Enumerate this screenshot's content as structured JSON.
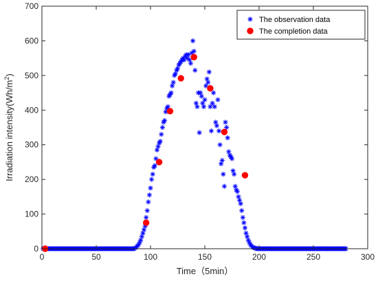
{
  "chart_data": {
    "type": "scatter",
    "xlabel": "Time（5min）",
    "ylabel_main": "Irradiation intensity(Wh/m",
    "ylabel_sup": "2",
    "ylabel_close": ")",
    "xlim": [
      0,
      300
    ],
    "ylim": [
      0,
      700
    ],
    "x_ticks": [
      0,
      50,
      100,
      150,
      200,
      250,
      300
    ],
    "y_ticks": [
      0,
      100,
      200,
      300,
      400,
      500,
      600,
      700
    ],
    "grid": false,
    "legend_position": "top-right",
    "series": [
      {
        "name": "The observation data",
        "marker": "asterisk",
        "color": "#0000ff",
        "points": [
          [
            1,
            0
          ],
          [
            2,
            0
          ],
          [
            3,
            0
          ],
          [
            4,
            0
          ],
          [
            5,
            0
          ],
          [
            6,
            0
          ],
          [
            7,
            0
          ],
          [
            8,
            0
          ],
          [
            9,
            0
          ],
          [
            10,
            0
          ],
          [
            11,
            0
          ],
          [
            12,
            0
          ],
          [
            13,
            0
          ],
          [
            14,
            0
          ],
          [
            15,
            0
          ],
          [
            16,
            0
          ],
          [
            17,
            0
          ],
          [
            18,
            0
          ],
          [
            19,
            0
          ],
          [
            20,
            0
          ],
          [
            21,
            0
          ],
          [
            22,
            0
          ],
          [
            23,
            0
          ],
          [
            24,
            0
          ],
          [
            25,
            0
          ],
          [
            26,
            0
          ],
          [
            27,
            0
          ],
          [
            28,
            0
          ],
          [
            29,
            0
          ],
          [
            30,
            0
          ],
          [
            31,
            0
          ],
          [
            32,
            0
          ],
          [
            33,
            0
          ],
          [
            34,
            0
          ],
          [
            35,
            0
          ],
          [
            36,
            0
          ],
          [
            37,
            0
          ],
          [
            38,
            0
          ],
          [
            39,
            0
          ],
          [
            40,
            0
          ],
          [
            41,
            0
          ],
          [
            42,
            0
          ],
          [
            43,
            0
          ],
          [
            44,
            0
          ],
          [
            45,
            0
          ],
          [
            46,
            0
          ],
          [
            47,
            0
          ],
          [
            48,
            0
          ],
          [
            49,
            0
          ],
          [
            50,
            0
          ],
          [
            51,
            0
          ],
          [
            52,
            0
          ],
          [
            53,
            0
          ],
          [
            54,
            0
          ],
          [
            55,
            0
          ],
          [
            56,
            0
          ],
          [
            57,
            0
          ],
          [
            58,
            0
          ],
          [
            59,
            0
          ],
          [
            60,
            0
          ],
          [
            61,
            0
          ],
          [
            62,
            0
          ],
          [
            63,
            0
          ],
          [
            64,
            0
          ],
          [
            65,
            0
          ],
          [
            66,
            0
          ],
          [
            67,
            0
          ],
          [
            68,
            0
          ],
          [
            69,
            0
          ],
          [
            70,
            0
          ],
          [
            71,
            0
          ],
          [
            72,
            0
          ],
          [
            73,
            0
          ],
          [
            74,
            0
          ],
          [
            75,
            0
          ],
          [
            76,
            0
          ],
          [
            77,
            0
          ],
          [
            78,
            0
          ],
          [
            79,
            0
          ],
          [
            80,
            0
          ],
          [
            81,
            0
          ],
          [
            82,
            0
          ],
          [
            83,
            0
          ],
          [
            84,
            0
          ],
          [
            85,
            0
          ],
          [
            86,
            2
          ],
          [
            87,
            5
          ],
          [
            88,
            8
          ],
          [
            89,
            12
          ],
          [
            90,
            18
          ],
          [
            91,
            25
          ],
          [
            92,
            35
          ],
          [
            93,
            45
          ],
          [
            94,
            55
          ],
          [
            95,
            65
          ],
          [
            96,
            90
          ],
          [
            97,
            110
          ],
          [
            98,
            135
          ],
          [
            99,
            155
          ],
          [
            100,
            175
          ],
          [
            101,
            200
          ],
          [
            102,
            215
          ],
          [
            103,
            235
          ],
          [
            104,
            240
          ],
          [
            105,
            260
          ],
          [
            106,
            285
          ],
          [
            107,
            295
          ],
          [
            108,
            305
          ],
          [
            109,
            310
          ],
          [
            110,
            330
          ],
          [
            111,
            350
          ],
          [
            112,
            365
          ],
          [
            113,
            370
          ],
          [
            114,
            395
          ],
          [
            115,
            405
          ],
          [
            116,
            410
          ],
          [
            117,
            440
          ],
          [
            118,
            445
          ],
          [
            119,
            450
          ],
          [
            120,
            470
          ],
          [
            121,
            480
          ],
          [
            122,
            500
          ],
          [
            123,
            505
          ],
          [
            124,
            515
          ],
          [
            125,
            520
          ],
          [
            126,
            530
          ],
          [
            127,
            535
          ],
          [
            128,
            540
          ],
          [
            129,
            545
          ],
          [
            130,
            550
          ],
          [
            131,
            545
          ],
          [
            132,
            555
          ],
          [
            133,
            560
          ],
          [
            134,
            550
          ],
          [
            135,
            560
          ],
          [
            136,
            545
          ],
          [
            137,
            535
          ],
          [
            138,
            565
          ],
          [
            139,
            600
          ],
          [
            140,
            570
          ],
          [
            141,
            515
          ],
          [
            142,
            420
          ],
          [
            143,
            410
          ],
          [
            144,
            450
          ],
          [
            145,
            335
          ],
          [
            146,
            450
          ],
          [
            147,
            440
          ],
          [
            148,
            420
          ],
          [
            149,
            410
          ],
          [
            150,
            430
          ],
          [
            151,
            470
          ],
          [
            152,
            490
          ],
          [
            153,
            480
          ],
          [
            154,
            510
          ],
          [
            155,
            410
          ],
          [
            156,
            340
          ],
          [
            157,
            420
          ],
          [
            158,
            450
          ],
          [
            159,
            410
          ],
          [
            160,
            365
          ],
          [
            161,
            355
          ],
          [
            162,
            430
          ],
          [
            163,
            340
          ],
          [
            164,
            300
          ],
          [
            165,
            245
          ],
          [
            166,
            255
          ],
          [
            167,
            215
          ],
          [
            168,
            180
          ],
          [
            169,
            365
          ],
          [
            170,
            350
          ],
          [
            171,
            320
          ],
          [
            172,
            280
          ],
          [
            173,
            270
          ],
          [
            174,
            265
          ],
          [
            175,
            260
          ],
          [
            176,
            225
          ],
          [
            177,
            215
          ],
          [
            178,
            180
          ],
          [
            179,
            170
          ],
          [
            180,
            165
          ],
          [
            181,
            150
          ],
          [
            182,
            140
          ],
          [
            183,
            130
          ],
          [
            184,
            110
          ],
          [
            185,
            90
          ],
          [
            186,
            75
          ],
          [
            187,
            60
          ],
          [
            188,
            45
          ],
          [
            189,
            35
          ],
          [
            190,
            25
          ],
          [
            191,
            18
          ],
          [
            192,
            12
          ],
          [
            193,
            8
          ],
          [
            194,
            5
          ],
          [
            195,
            3
          ],
          [
            196,
            2
          ],
          [
            197,
            1
          ],
          [
            198,
            0
          ],
          [
            199,
            0
          ],
          [
            200,
            0
          ],
          [
            201,
            0
          ],
          [
            202,
            0
          ],
          [
            203,
            0
          ],
          [
            204,
            0
          ],
          [
            205,
            0
          ],
          [
            206,
            0
          ],
          [
            207,
            0
          ],
          [
            208,
            0
          ],
          [
            209,
            0
          ],
          [
            210,
            0
          ],
          [
            211,
            0
          ],
          [
            212,
            0
          ],
          [
            213,
            0
          ],
          [
            214,
            0
          ],
          [
            215,
            0
          ],
          [
            216,
            0
          ],
          [
            217,
            0
          ],
          [
            218,
            0
          ],
          [
            219,
            0
          ],
          [
            220,
            0
          ],
          [
            221,
            0
          ],
          [
            222,
            0
          ],
          [
            223,
            0
          ],
          [
            224,
            0
          ],
          [
            225,
            0
          ],
          [
            226,
            0
          ],
          [
            227,
            0
          ],
          [
            228,
            0
          ],
          [
            229,
            0
          ],
          [
            230,
            0
          ],
          [
            231,
            0
          ],
          [
            232,
            0
          ],
          [
            233,
            0
          ],
          [
            234,
            0
          ],
          [
            235,
            0
          ],
          [
            236,
            0
          ],
          [
            237,
            0
          ],
          [
            238,
            0
          ],
          [
            239,
            0
          ],
          [
            240,
            0
          ],
          [
            241,
            0
          ],
          [
            242,
            0
          ],
          [
            243,
            0
          ],
          [
            244,
            0
          ],
          [
            245,
            0
          ],
          [
            246,
            0
          ],
          [
            247,
            0
          ],
          [
            248,
            0
          ],
          [
            249,
            0
          ],
          [
            250,
            0
          ],
          [
            251,
            0
          ],
          [
            252,
            0
          ],
          [
            253,
            0
          ],
          [
            254,
            0
          ],
          [
            255,
            0
          ],
          [
            256,
            0
          ],
          [
            257,
            0
          ],
          [
            258,
            0
          ],
          [
            259,
            0
          ],
          [
            260,
            0
          ],
          [
            261,
            0
          ],
          [
            262,
            0
          ],
          [
            263,
            0
          ],
          [
            264,
            0
          ],
          [
            265,
            0
          ],
          [
            266,
            0
          ],
          [
            267,
            0
          ],
          [
            268,
            0
          ],
          [
            269,
            0
          ],
          [
            270,
            0
          ],
          [
            271,
            0
          ],
          [
            272,
            0
          ],
          [
            273,
            0
          ],
          [
            274,
            0
          ],
          [
            275,
            0
          ],
          [
            276,
            0
          ],
          [
            277,
            0
          ],
          [
            278,
            0
          ],
          [
            279,
            0
          ],
          [
            280,
            0
          ]
        ]
      },
      {
        "name": "The completion data",
        "marker": "dot",
        "color": "#ff0000",
        "points": [
          [
            3,
            0
          ],
          [
            96,
            75
          ],
          [
            108,
            250
          ],
          [
            118,
            397
          ],
          [
            128,
            492
          ],
          [
            140,
            553
          ],
          [
            155,
            463
          ],
          [
            168,
            337
          ],
          [
            187,
            212
          ]
        ]
      }
    ]
  }
}
